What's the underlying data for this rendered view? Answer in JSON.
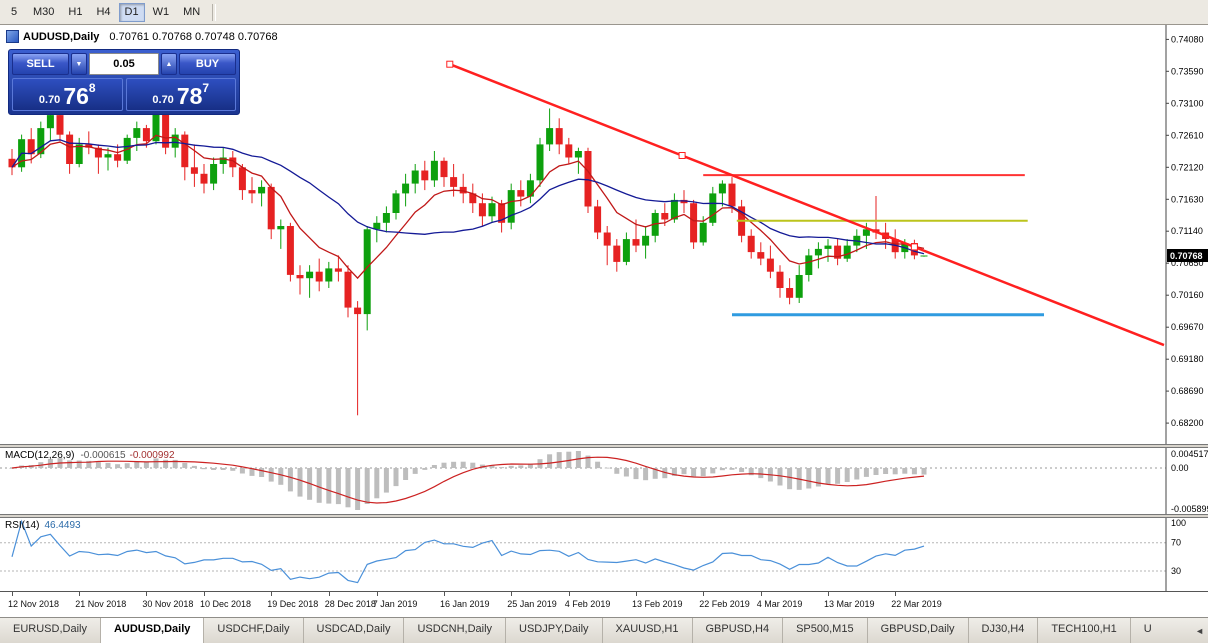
{
  "toolbar": {
    "timeframes": [
      {
        "label": "5",
        "active": false
      },
      {
        "label": "M30",
        "active": false
      },
      {
        "label": "H1",
        "active": false
      },
      {
        "label": "H4",
        "active": false
      },
      {
        "label": "D1",
        "active": true
      },
      {
        "label": "W1",
        "active": false
      },
      {
        "label": "MN",
        "active": false
      }
    ]
  },
  "chart": {
    "symbol_text": "AUDUSD,Daily",
    "ohlc_text": "0.70761 0.70768 0.70748 0.70768",
    "current_price": "0.70768"
  },
  "trade": {
    "sell_label": "SELL",
    "buy_label": "BUY",
    "volume": "0.05",
    "spin_down_glyph": "▼",
    "spin_up_glyph": "▲",
    "bid_prefix": "0.70",
    "bid_big": "76",
    "bid_sup": "8",
    "ask_prefix": "0.70",
    "ask_big": "78",
    "ask_sup": "7"
  },
  "macd": {
    "name": "MACD(12,26,9)",
    "value_main": "-0.000615",
    "value_signal": "-0.000992",
    "axis_top": "0.004517",
    "axis_zero": "0.00",
    "axis_bottom": "-0.005899",
    "fast": 12,
    "slow": 26,
    "signal": 9
  },
  "rsi": {
    "name": "RSI(14)",
    "value": "46.4493",
    "axis_labels": [
      "100",
      "70",
      "30"
    ],
    "levels": [
      70,
      30
    ],
    "period": 14
  },
  "icons": {
    "tab_scroll_left": "◄"
  },
  "colors": {
    "candle_up": "#0da00d",
    "candle_down": "#e62222",
    "ma_fast": "#c01818",
    "ma_slow": "#141a96",
    "trend_line": "#ff2020",
    "macd_hist": "#bdbdbd",
    "macd_signal": "#cc2222",
    "rsi_line": "#4a90d9",
    "price_tag_bg": "#000000"
  },
  "tabs": [
    {
      "label": "EURUSD,Daily",
      "active": false
    },
    {
      "label": "AUDUSD,Daily",
      "active": true
    },
    {
      "label": "USDCHF,Daily",
      "active": false
    },
    {
      "label": "USDCAD,Daily",
      "active": false
    },
    {
      "label": "USDCNH,Daily",
      "active": false
    },
    {
      "label": "USDJPY,Daily",
      "active": false
    },
    {
      "label": "XAUUSD,H1",
      "active": false
    },
    {
      "label": "GBPUSD,H4",
      "active": false
    },
    {
      "label": "SP500,M15",
      "active": false
    },
    {
      "label": "GBPUSD,Daily",
      "active": false
    },
    {
      "label": "DJ30,H4",
      "active": false
    },
    {
      "label": "TECH100,H1",
      "active": false
    },
    {
      "label": "U",
      "active": false,
      "partial": true
    }
  ],
  "chart_data": {
    "type": "candlestick",
    "symbol": "AUDUSD",
    "timeframe": "Daily",
    "y_range": [
      0.6788,
      0.743
    ],
    "price_ticks": [
      "0.74080",
      "0.73590",
      "0.73100",
      "0.72610",
      "0.72120",
      "0.71630",
      "0.71140",
      "0.70650",
      "0.70160",
      "0.69670",
      "0.69180",
      "0.68690",
      "0.68200"
    ],
    "date_ticks": [
      {
        "i": 0,
        "label": "12 Nov 2018"
      },
      {
        "i": 7,
        "label": "21 Nov 2018"
      },
      {
        "i": 14,
        "label": "30 Nov 2018"
      },
      {
        "i": 20,
        "label": "10 Dec 2018"
      },
      {
        "i": 27,
        "label": "19 Dec 2018"
      },
      {
        "i": 33,
        "label": "28 Dec 2018"
      },
      {
        "i": 38,
        "label": "7 Jan 2019"
      },
      {
        "i": 45,
        "label": "16 Jan 2019"
      },
      {
        "i": 52,
        "label": "25 Jan 2019"
      },
      {
        "i": 58,
        "label": "4 Feb 2019"
      },
      {
        "i": 65,
        "label": "13 Feb 2019"
      },
      {
        "i": 72,
        "label": "22 Feb 2019"
      },
      {
        "i": 78,
        "label": "4 Mar 2019"
      },
      {
        "i": 85,
        "label": "13 Mar 2019"
      },
      {
        "i": 92,
        "label": "22 Mar 2019"
      }
    ],
    "moving_averages": [
      {
        "name": "ma-fast",
        "method": "ema",
        "period": 8,
        "color_key": "ma_fast"
      },
      {
        "name": "ma-slow",
        "method": "sma",
        "period": 20,
        "color_key": "ma_slow"
      }
    ],
    "trendline": {
      "i1": 45.6,
      "p1": 0.737,
      "i2": 94.0,
      "p2": 0.709,
      "extend": true
    },
    "segments": [
      {
        "name": "resistance-line",
        "price": 0.72,
        "i1": 72.0,
        "i2": 105.5,
        "color": "#ff3333",
        "width": 2
      },
      {
        "name": "mid-resistance-line",
        "price": 0.713,
        "i1": 75.5,
        "i2": 105.8,
        "color": "#bcc41c",
        "width": 2
      },
      {
        "name": "support-line",
        "price": 0.6986,
        "i1": 75.0,
        "i2": 107.5,
        "color": "#2f9be0",
        "width": 3
      }
    ],
    "ohlc": [
      [
        0.7225,
        0.724,
        0.72,
        0.7212
      ],
      [
        0.7212,
        0.7262,
        0.7205,
        0.7255
      ],
      [
        0.7255,
        0.7272,
        0.7218,
        0.7232
      ],
      [
        0.7232,
        0.7282,
        0.7226,
        0.7272
      ],
      [
        0.7272,
        0.7302,
        0.7252,
        0.7292
      ],
      [
        0.7292,
        0.7297,
        0.7252,
        0.7262
      ],
      [
        0.7262,
        0.7267,
        0.7202,
        0.7217
      ],
      [
        0.7217,
        0.7257,
        0.7212,
        0.7247
      ],
      [
        0.7247,
        0.7267,
        0.7232,
        0.7242
      ],
      [
        0.7242,
        0.7247,
        0.7202,
        0.7227
      ],
      [
        0.7227,
        0.7242,
        0.7207,
        0.7232
      ],
      [
        0.7232,
        0.7247,
        0.7212,
        0.7222
      ],
      [
        0.7222,
        0.7262,
        0.7217,
        0.7257
      ],
      [
        0.7257,
        0.7282,
        0.7237,
        0.7272
      ],
      [
        0.7272,
        0.7277,
        0.7242,
        0.7252
      ],
      [
        0.7252,
        0.7317,
        0.7247,
        0.7307
      ],
      [
        0.7307,
        0.7312,
        0.7232,
        0.7242
      ],
      [
        0.7242,
        0.7272,
        0.7227,
        0.7262
      ],
      [
        0.7262,
        0.7267,
        0.7192,
        0.7212
      ],
      [
        0.7212,
        0.7247,
        0.7182,
        0.7202
      ],
      [
        0.7202,
        0.7217,
        0.7172,
        0.7187
      ],
      [
        0.7187,
        0.7227,
        0.7177,
        0.7217
      ],
      [
        0.7217,
        0.7242,
        0.7202,
        0.7227
      ],
      [
        0.7227,
        0.7237,
        0.7197,
        0.7212
      ],
      [
        0.7212,
        0.7217,
        0.7162,
        0.7177
      ],
      [
        0.7177,
        0.7197,
        0.7157,
        0.7172
      ],
      [
        0.7172,
        0.7192,
        0.7152,
        0.7182
      ],
      [
        0.7182,
        0.7187,
        0.7102,
        0.7117
      ],
      [
        0.7117,
        0.7132,
        0.7087,
        0.7122
      ],
      [
        0.7122,
        0.7127,
        0.7037,
        0.7047
      ],
      [
        0.7047,
        0.7062,
        0.7017,
        0.7042
      ],
      [
        0.7042,
        0.7062,
        0.7012,
        0.7052
      ],
      [
        0.7052,
        0.7072,
        0.7022,
        0.7037
      ],
      [
        0.7037,
        0.7067,
        0.7027,
        0.7057
      ],
      [
        0.7057,
        0.7077,
        0.7037,
        0.7052
      ],
      [
        0.7052,
        0.7062,
        0.6982,
        0.6997
      ],
      [
        0.6997,
        0.7007,
        0.6832,
        0.6987
      ],
      [
        0.6987,
        0.7122,
        0.6962,
        0.7117
      ],
      [
        0.7117,
        0.7137,
        0.7097,
        0.7127
      ],
      [
        0.7127,
        0.7152,
        0.7112,
        0.7142
      ],
      [
        0.7142,
        0.7177,
        0.7132,
        0.7172
      ],
      [
        0.7172,
        0.7202,
        0.7152,
        0.7187
      ],
      [
        0.7187,
        0.7217,
        0.7172,
        0.7207
      ],
      [
        0.7207,
        0.7222,
        0.7177,
        0.7192
      ],
      [
        0.7192,
        0.7237,
        0.7182,
        0.7222
      ],
      [
        0.7222,
        0.7227,
        0.7182,
        0.7197
      ],
      [
        0.7197,
        0.7217,
        0.7167,
        0.7182
      ],
      [
        0.7182,
        0.7202,
        0.7157,
        0.7172
      ],
      [
        0.7172,
        0.7187,
        0.7142,
        0.7157
      ],
      [
        0.7157,
        0.7172,
        0.7122,
        0.7137
      ],
      [
        0.7137,
        0.7167,
        0.7127,
        0.7157
      ],
      [
        0.7157,
        0.7162,
        0.7112,
        0.7127
      ],
      [
        0.7127,
        0.7187,
        0.7117,
        0.7177
      ],
      [
        0.7177,
        0.7192,
        0.7152,
        0.7167
      ],
      [
        0.7167,
        0.7202,
        0.7157,
        0.7192
      ],
      [
        0.7192,
        0.7257,
        0.7182,
        0.7247
      ],
      [
        0.7247,
        0.7302,
        0.7237,
        0.7272
      ],
      [
        0.7272,
        0.7287,
        0.7232,
        0.7247
      ],
      [
        0.7247,
        0.7257,
        0.7217,
        0.7227
      ],
      [
        0.7227,
        0.7242,
        0.7202,
        0.7237
      ],
      [
        0.7237,
        0.7242,
        0.7142,
        0.7152
      ],
      [
        0.7152,
        0.7162,
        0.7102,
        0.7112
      ],
      [
        0.7112,
        0.7122,
        0.7062,
        0.7092
      ],
      [
        0.7092,
        0.7102,
        0.7052,
        0.7067
      ],
      [
        0.7067,
        0.7112,
        0.7062,
        0.7102
      ],
      [
        0.7102,
        0.7132,
        0.7082,
        0.7092
      ],
      [
        0.7092,
        0.7122,
        0.7072,
        0.7107
      ],
      [
        0.7107,
        0.7147,
        0.7097,
        0.7142
      ],
      [
        0.7142,
        0.7157,
        0.7122,
        0.7132
      ],
      [
        0.7132,
        0.7172,
        0.7127,
        0.7162
      ],
      [
        0.7162,
        0.7177,
        0.7142,
        0.7157
      ],
      [
        0.7157,
        0.7162,
        0.7087,
        0.7097
      ],
      [
        0.7097,
        0.7137,
        0.7092,
        0.7127
      ],
      [
        0.7127,
        0.7182,
        0.7122,
        0.7172
      ],
      [
        0.7172,
        0.7192,
        0.7152,
        0.7187
      ],
      [
        0.7187,
        0.7197,
        0.7142,
        0.7152
      ],
      [
        0.7152,
        0.7162,
        0.7097,
        0.7107
      ],
      [
        0.7107,
        0.7117,
        0.7072,
        0.7082
      ],
      [
        0.7082,
        0.7097,
        0.7062,
        0.7072
      ],
      [
        0.7072,
        0.7092,
        0.7042,
        0.7052
      ],
      [
        0.7052,
        0.7062,
        0.7012,
        0.7027
      ],
      [
        0.7027,
        0.7042,
        0.7002,
        0.7012
      ],
      [
        0.7012,
        0.7062,
        0.7004,
        0.7047
      ],
      [
        0.7047,
        0.7087,
        0.7037,
        0.7077
      ],
      [
        0.7077,
        0.7097,
        0.7057,
        0.7087
      ],
      [
        0.7087,
        0.7102,
        0.7067,
        0.7092
      ],
      [
        0.7092,
        0.7102,
        0.7062,
        0.7072
      ],
      [
        0.7072,
        0.7102,
        0.7067,
        0.7092
      ],
      [
        0.7092,
        0.7117,
        0.7082,
        0.7107
      ],
      [
        0.7107,
        0.7127,
        0.7087,
        0.7117
      ],
      [
        0.7117,
        0.7168,
        0.7102,
        0.7112
      ],
      [
        0.7112,
        0.7127,
        0.7087,
        0.7102
      ],
      [
        0.7102,
        0.7117,
        0.7072,
        0.7082
      ],
      [
        0.7082,
        0.7102,
        0.7072,
        0.7096
      ],
      [
        0.7096,
        0.7101,
        0.7071,
        0.7077
      ],
      [
        0.70761,
        0.70768,
        0.70748,
        0.70768
      ]
    ]
  }
}
